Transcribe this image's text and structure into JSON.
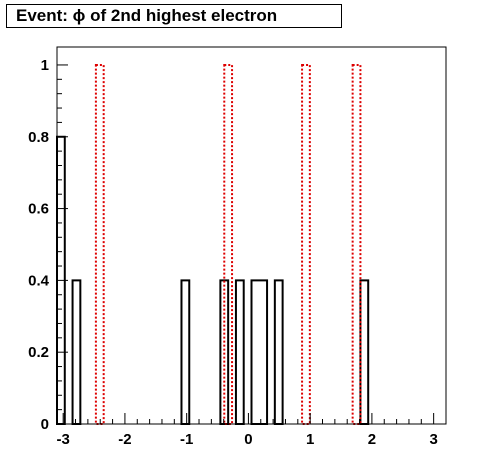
{
  "chart_data": {
    "type": "histogram",
    "title": "Event: ϕ of 2nd highest electron",
    "xlabel": "",
    "ylabel": "",
    "xlim": [
      -3.1,
      3.2
    ],
    "ylim": [
      0,
      1.05
    ],
    "x_ticks": [
      -3,
      -2,
      -1,
      0,
      1,
      2,
      3
    ],
    "y_ticks": [
      0,
      0.2,
      0.4,
      0.6,
      0.8,
      1
    ],
    "x_tick_labels": [
      "-3",
      "-2",
      "-1",
      "0",
      "1",
      "2",
      "3"
    ],
    "y_tick_labels": [
      "0",
      "0.2",
      "0.4",
      "0.6",
      "0.8",
      "1"
    ],
    "bin_width": 0.126,
    "grid": false,
    "series": [
      {
        "style": "solid",
        "color": "#000000",
        "bins": [
          {
            "x0": -3.1,
            "x1": -2.974,
            "y": 0.8
          },
          {
            "x0": -2.848,
            "x1": -2.722,
            "y": 0.4
          },
          {
            "x0": -1.084,
            "x1": -0.958,
            "y": 0.4
          },
          {
            "x0": -0.454,
            "x1": -0.328,
            "y": 0.4
          },
          {
            "x0": -0.202,
            "x1": -0.076,
            "y": 0.4
          },
          {
            "x0": 0.05,
            "x1": 0.302,
            "y": 0.4
          },
          {
            "x0": 0.428,
            "x1": 0.554,
            "y": 0.4
          },
          {
            "x0": 1.814,
            "x1": 1.94,
            "y": 0.4
          }
        ]
      },
      {
        "style": "dashed",
        "color": "#dd0000",
        "bins": [
          {
            "x0": -2.47,
            "x1": -2.344,
            "y": 1
          },
          {
            "x0": -0.391,
            "x1": -0.265,
            "y": 1
          },
          {
            "x0": 0.869,
            "x1": 0.995,
            "y": 1
          },
          {
            "x0": 1.688,
            "x1": 1.814,
            "y": 1
          }
        ]
      }
    ]
  }
}
